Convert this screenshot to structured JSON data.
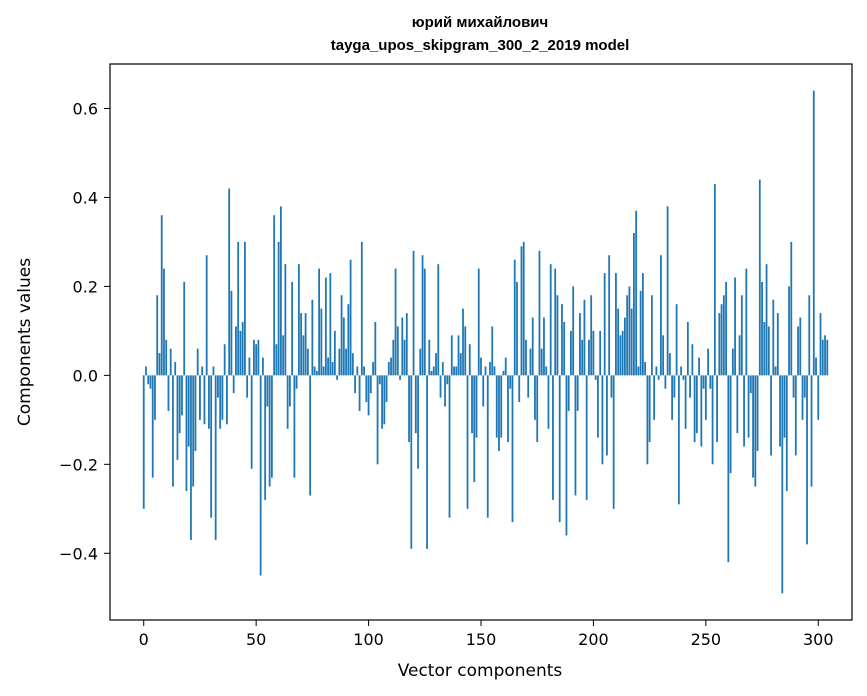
{
  "chart_data": {
    "type": "bar",
    "title": "юрий михайлович",
    "subtitle": "tayga_upos_skipgram_300_2_2019 model",
    "xlabel": "Vector components",
    "ylabel": "Components values",
    "xlim": [
      -15,
      315
    ],
    "ylim": [
      -0.55,
      0.7
    ],
    "xticks": [
      0,
      50,
      100,
      150,
      200,
      250,
      300
    ],
    "xtick_labels": [
      "0",
      "50",
      "100",
      "150",
      "200",
      "250",
      "300"
    ],
    "yticks": [
      -0.4,
      -0.2,
      0.0,
      0.2,
      0.4,
      0.6
    ],
    "ytick_labels": [
      "−0.4",
      "−0.2",
      "0.0",
      "0.2",
      "0.4",
      "0.6"
    ],
    "grid": false,
    "bar_color": "#1f77b4",
    "values": [
      -0.3,
      0.02,
      -0.02,
      -0.03,
      -0.23,
      -0.1,
      0.18,
      0.05,
      0.36,
      0.24,
      0.08,
      -0.08,
      0.06,
      -0.25,
      0.03,
      -0.19,
      -0.13,
      -0.09,
      0.21,
      -0.26,
      -0.16,
      -0.37,
      -0.25,
      -0.17,
      0.06,
      -0.1,
      0.02,
      -0.11,
      0.27,
      -0.12,
      -0.32,
      0.02,
      -0.37,
      -0.05,
      -0.12,
      -0.1,
      0.07,
      -0.11,
      0.42,
      0.19,
      -0.04,
      0.11,
      0.3,
      0.1,
      0.12,
      0.3,
      -0.05,
      0.04,
      -0.21,
      0.08,
      0.07,
      0.08,
      -0.45,
      0.04,
      -0.28,
      -0.07,
      -0.25,
      -0.23,
      0.36,
      0.07,
      0.3,
      0.38,
      0.09,
      0.25,
      -0.12,
      -0.07,
      0.21,
      -0.23,
      -0.03,
      0.25,
      0.14,
      0.09,
      0.14,
      0.06,
      -0.27,
      0.17,
      0.02,
      0.01,
      0.24,
      0.15,
      0.02,
      0.22,
      0.04,
      0.23,
      0.03,
      0.1,
      -0.01,
      0.06,
      0.18,
      0.13,
      0.06,
      0.16,
      0.26,
      0.05,
      -0.04,
      0.02,
      -0.08,
      0.3,
      0.02,
      -0.06,
      -0.09,
      -0.04,
      0.03,
      0.12,
      -0.2,
      -0.02,
      -0.12,
      -0.11,
      -0.06,
      0.03,
      0.04,
      0.08,
      0.24,
      0.11,
      -0.01,
      0.13,
      0.08,
      0.14,
      -0.15,
      -0.39,
      0.28,
      -0.13,
      -0.21,
      0.06,
      0.27,
      0.24,
      -0.39,
      0.08,
      0.01,
      0.02,
      0.05,
      0.25,
      -0.05,
      0.03,
      -0.07,
      -0.02,
      -0.32,
      0.09,
      0.02,
      0.02,
      0.09,
      0.05,
      0.15,
      0.11,
      -0.3,
      0.07,
      -0.13,
      -0.24,
      -0.14,
      0.24,
      0.04,
      -0.07,
      0.02,
      -0.32,
      0.03,
      0.11,
      0.02,
      -0.14,
      -0.17,
      -0.14,
      0.01,
      0.04,
      -0.15,
      -0.03,
      -0.33,
      0.26,
      0.21,
      -0.06,
      0.29,
      0.3,
      0.08,
      -0.05,
      0.06,
      0.13,
      -0.1,
      -0.15,
      0.28,
      0.06,
      0.13,
      0.02,
      -0.12,
      0.25,
      -0.28,
      0.24,
      0.18,
      -0.33,
      0.16,
      0.12,
      -0.36,
      -0.08,
      0.1,
      0.2,
      -0.27,
      -0.08,
      0.14,
      0.08,
      0.17,
      -0.28,
      0.08,
      0.18,
      0.1,
      -0.01,
      -0.14,
      0.1,
      -0.2,
      0.23,
      -0.18,
      0.27,
      -0.05,
      -0.3,
      0.23,
      0.15,
      0.09,
      0.1,
      0.13,
      0.18,
      0.2,
      0.15,
      0.32,
      0.37,
      0.02,
      0.19,
      0.23,
      0.03,
      -0.2,
      -0.15,
      0.18,
      -0.1,
      0.02,
      -0.01,
      0.27,
      0.09,
      -0.03,
      0.38,
      0.05,
      -0.1,
      -0.05,
      0.16,
      -0.29,
      0.02,
      -0.01,
      -0.12,
      0.12,
      -0.05,
      0.07,
      -0.15,
      -0.13,
      0.04,
      -0.16,
      -0.03,
      -0.1,
      0.06,
      -0.03,
      -0.2,
      0.43,
      -0.15,
      0.14,
      0.16,
      0.18,
      0.21,
      -0.42,
      -0.22,
      0.06,
      0.22,
      -0.13,
      0.09,
      0.18,
      -0.16,
      0.24,
      -0.14,
      -0.04,
      -0.23,
      -0.25,
      -0.17,
      0.44,
      0.21,
      0.12,
      0.25,
      0.11,
      -0.18,
      0.17,
      0.02,
      0.14,
      -0.16,
      -0.49,
      -0.14,
      -0.26,
      0.2,
      0.3,
      -0.05,
      -0.18,
      0.11,
      0.13,
      -0.1,
      -0.05,
      -0.38,
      0.18,
      -0.25,
      0.64,
      0.04,
      -0.1,
      0.14,
      0.08,
      0.09,
      0.08
    ]
  }
}
